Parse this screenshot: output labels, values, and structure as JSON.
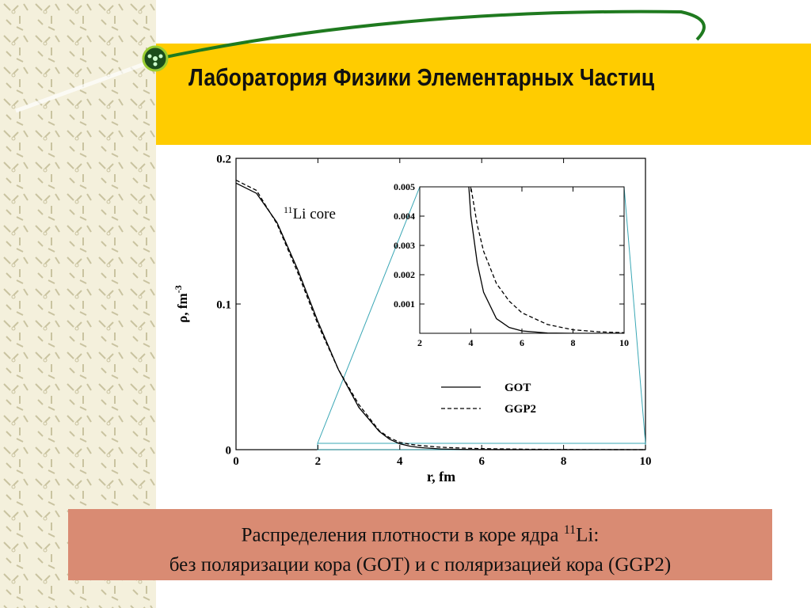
{
  "header": {
    "title": "Лаборатория Физики Элементарных Частиц"
  },
  "caption": {
    "line1": "Распределения плотности в коре ядра ",
    "line1_sup": "11",
    "line1_end": "Li:",
    "line2": "без поляризации кора (GOT) и с поляризацией кора (GGP2)"
  },
  "chart_data": [
    {
      "type": "line",
      "annotation": {
        "sup": "11",
        "text": "Li  core"
      },
      "x_label": "r,  fm",
      "y_label": "ρ,  fm",
      "y_label_sup": "-3",
      "xlim": [
        0,
        10
      ],
      "ylim": [
        0,
        0.2
      ],
      "xticks": [
        0,
        2,
        4,
        6,
        8,
        10
      ],
      "yticks": [
        0,
        0.1,
        0.2
      ],
      "x": [
        0,
        0.5,
        1,
        1.5,
        2,
        2.5,
        3,
        3.5,
        3.75,
        4,
        4.25,
        4.5,
        5,
        5.5,
        6,
        7,
        8,
        9,
        10
      ],
      "series": [
        {
          "name": "GOT",
          "color": "#000000",
          "dash": "solid",
          "values": [
            0.183,
            0.176,
            0.156,
            0.124,
            0.088,
            0.055,
            0.029,
            0.0125,
            0.0072,
            0.004,
            0.0024,
            0.0014,
            0.0005,
            0.0002,
            8e-05,
            1e-05,
            0,
            0,
            0
          ]
        },
        {
          "name": "GGP2",
          "color": "#000000",
          "dash": "dashed",
          "values": [
            0.185,
            0.178,
            0.155,
            0.122,
            0.086,
            0.055,
            0.031,
            0.013,
            0.0082,
            0.005,
            0.0037,
            0.0028,
            0.0017,
            0.0011,
            0.0007,
            0.0003,
            0.00012,
            5e-05,
            2e-05
          ]
        }
      ]
    },
    {
      "type": "inset",
      "xlim": [
        2,
        10
      ],
      "ylim": [
        0,
        0.005
      ],
      "xticks": [
        2,
        4,
        6,
        8,
        10
      ],
      "yticks": [
        0.001,
        0.002,
        0.003,
        0.004,
        0.005
      ]
    }
  ]
}
